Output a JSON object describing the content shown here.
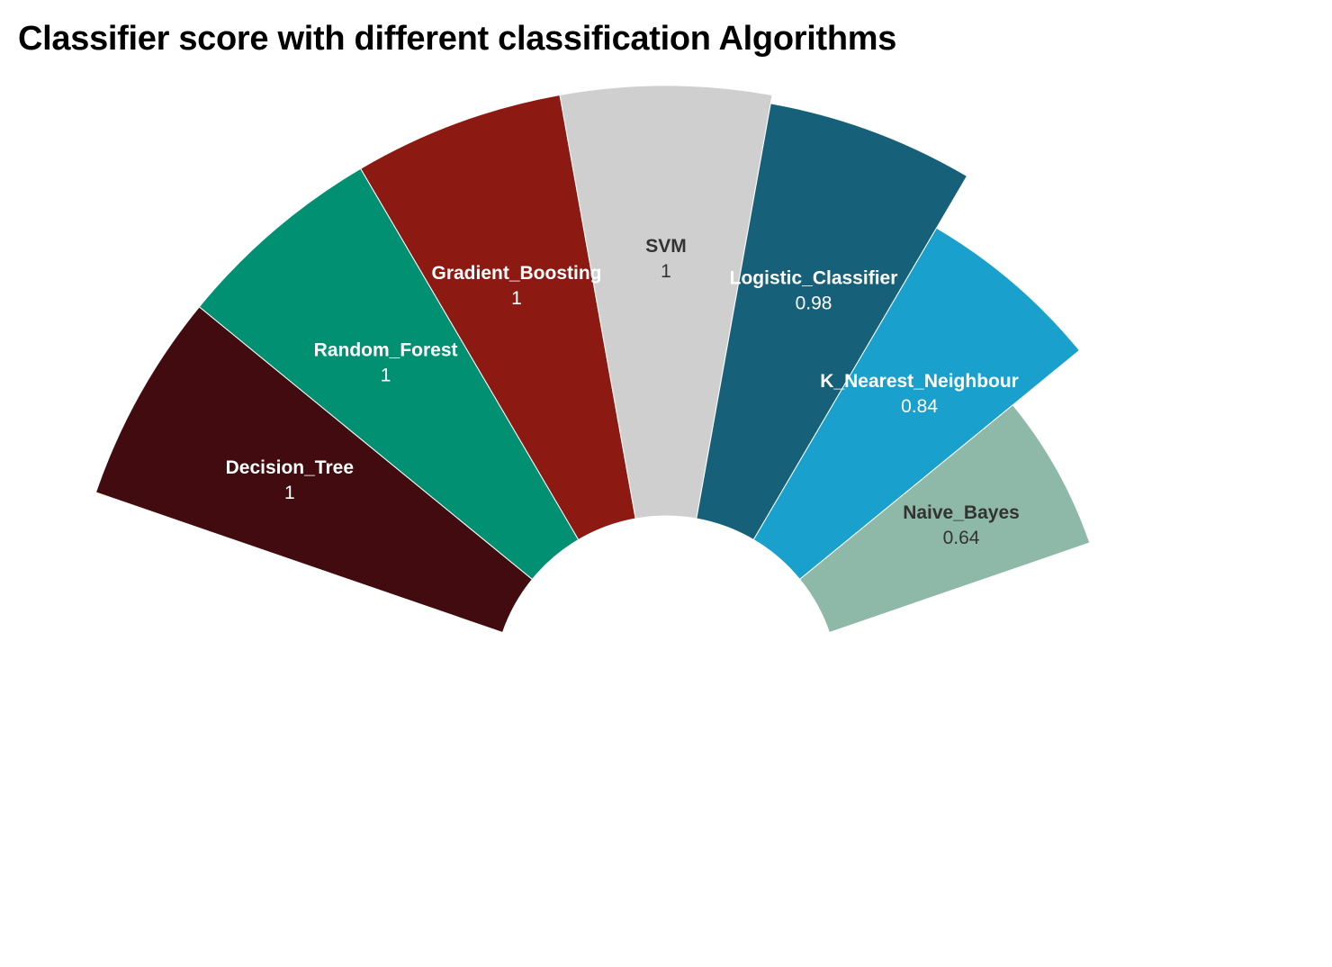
{
  "chart_data": {
    "type": "pie",
    "subtype": "radial-semicircle",
    "title": "Classifier score with different classification Algorithms",
    "value_range": [
      0,
      1
    ],
    "segments": [
      {
        "name": "Decision_Tree",
        "value": 1,
        "value_label": "1",
        "color": "#410b0f",
        "text_color": "#ffffff"
      },
      {
        "name": "Random_Forest",
        "value": 1,
        "value_label": "1",
        "color": "#029073",
        "text_color": "#ffffff"
      },
      {
        "name": "Gradient_Boosting",
        "value": 1,
        "value_label": "1",
        "color": "#8c1a12",
        "text_color": "#ffffff"
      },
      {
        "name": "SVM",
        "value": 1,
        "value_label": "1",
        "color": "#cfcfcf",
        "text_color": "#333333"
      },
      {
        "name": "Logistic_Classifier",
        "value": 0.98,
        "value_label": "0.98",
        "color": "#17607a",
        "text_color": "#ffffff"
      },
      {
        "name": "K_Nearest_Neighbour",
        "value": 0.84,
        "value_label": "0.84",
        "color": "#19a0cc",
        "text_color": "#ffffff"
      },
      {
        "name": "Naive_Bayes",
        "value": 0.64,
        "value_label": "0.64",
        "color": "#8eb8a8",
        "text_color": "#333333"
      }
    ],
    "legend": "none"
  }
}
